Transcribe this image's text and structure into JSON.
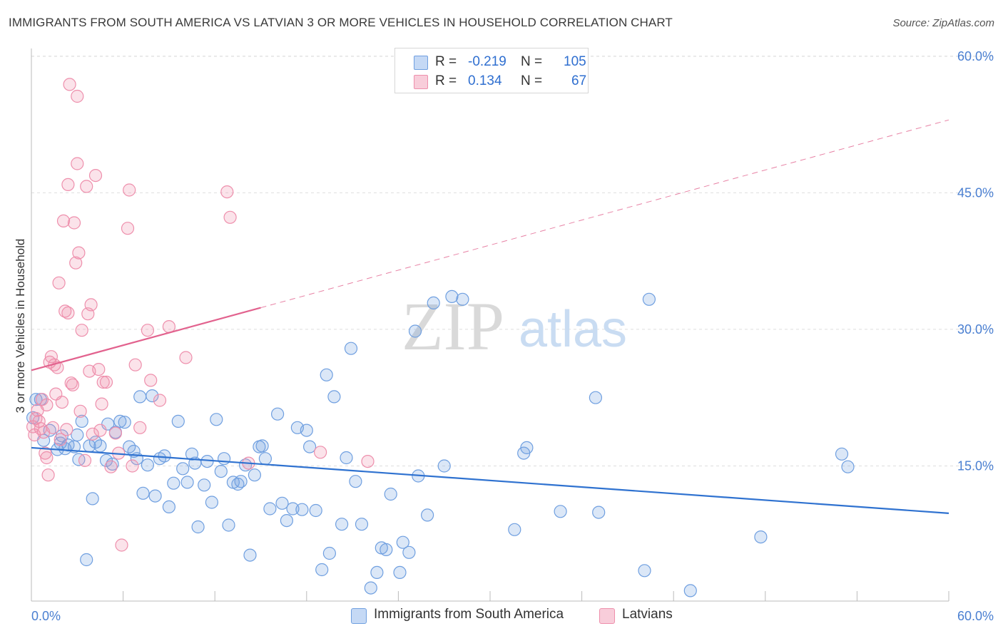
{
  "header": {
    "title": "IMMIGRANTS FROM SOUTH AMERICA VS LATVIAN 3 OR MORE VEHICLES IN HOUSEHOLD CORRELATION CHART",
    "source": "Source: ZipAtlas.com"
  },
  "watermark": {
    "part1": "ZIP",
    "part2": "atlas"
  },
  "legend_top": {
    "rows": [
      {
        "r_label": "R =",
        "r_value": "-0.219",
        "n_label": "N =",
        "n_value": "105",
        "color": "#6f9fe0"
      },
      {
        "r_label": "R =",
        "r_value": "0.134",
        "n_label": "N =",
        "n_value": "67",
        "color": "#ee8fac"
      }
    ]
  },
  "legend_bottom": {
    "items": [
      {
        "label": "Immigrants from South America",
        "color": "#6f9fe0"
      },
      {
        "label": "Latvians",
        "color": "#ee8fac"
      }
    ]
  },
  "chart_data": {
    "type": "scatter",
    "ylabel": "3 or more Vehicles in Household",
    "xlim": [
      0,
      60
    ],
    "ylim": [
      0,
      62
    ],
    "x_tick_labels": [
      "0.0%",
      "60.0%"
    ],
    "y_ticks": [
      15,
      30,
      45,
      60
    ],
    "y_tick_labels": [
      "15.0%",
      "30.0%",
      "45.0%",
      "60.0%"
    ],
    "grid": true,
    "series": [
      {
        "name": "Immigrants from South America",
        "color": "#6f9fe0",
        "line_color": "#2f72d0",
        "trend": {
          "x0": 0,
          "y0": 17.0,
          "x1": 60,
          "y1": 9.8,
          "dashed_from": null
        },
        "points": [
          [
            0.1,
            20.3
          ],
          [
            0.3,
            22.3
          ],
          [
            0.6,
            22.3
          ],
          [
            0.8,
            17.8
          ],
          [
            1.2,
            18.9
          ],
          [
            1.7,
            16.8
          ],
          [
            1.9,
            17.5
          ],
          [
            2.0,
            18.3
          ],
          [
            2.2,
            16.9
          ],
          [
            2.4,
            17.3
          ],
          [
            2.8,
            17.1
          ],
          [
            3.0,
            18.4
          ],
          [
            3.1,
            15.7
          ],
          [
            3.3,
            19.9
          ],
          [
            3.6,
            4.7
          ],
          [
            3.8,
            17.2
          ],
          [
            4.0,
            11.4
          ],
          [
            4.2,
            17.6
          ],
          [
            4.5,
            17.2
          ],
          [
            4.9,
            15.6
          ],
          [
            5.0,
            19.6
          ],
          [
            5.3,
            15.2
          ],
          [
            5.5,
            18.7
          ],
          [
            5.8,
            19.9
          ],
          [
            6.1,
            19.8
          ],
          [
            6.4,
            17.1
          ],
          [
            6.7,
            16.6
          ],
          [
            6.9,
            15.8
          ],
          [
            7.1,
            22.6
          ],
          [
            7.3,
            12.0
          ],
          [
            7.6,
            15.1
          ],
          [
            7.9,
            22.7
          ],
          [
            8.1,
            11.7
          ],
          [
            8.4,
            15.8
          ],
          [
            8.7,
            16.1
          ],
          [
            9.0,
            10.5
          ],
          [
            9.3,
            13.1
          ],
          [
            9.6,
            19.9
          ],
          [
            9.9,
            14.7
          ],
          [
            10.2,
            13.2
          ],
          [
            10.5,
            16.3
          ],
          [
            10.7,
            15.3
          ],
          [
            10.9,
            8.3
          ],
          [
            11.3,
            12.9
          ],
          [
            11.5,
            15.5
          ],
          [
            11.8,
            11.0
          ],
          [
            12.1,
            20.1
          ],
          [
            12.4,
            14.4
          ],
          [
            12.6,
            15.8
          ],
          [
            12.9,
            8.5
          ],
          [
            13.2,
            13.2
          ],
          [
            13.5,
            13.0
          ],
          [
            13.7,
            13.3
          ],
          [
            14.0,
            15.1
          ],
          [
            14.3,
            5.2
          ],
          [
            14.6,
            14.0
          ],
          [
            14.9,
            17.1
          ],
          [
            15.1,
            17.2
          ],
          [
            15.3,
            15.8
          ],
          [
            15.6,
            10.3
          ],
          [
            16.1,
            20.7
          ],
          [
            16.4,
            10.9
          ],
          [
            16.7,
            9.0
          ],
          [
            17.1,
            10.3
          ],
          [
            17.4,
            19.2
          ],
          [
            17.7,
            10.2
          ],
          [
            18.0,
            18.9
          ],
          [
            18.2,
            17.1
          ],
          [
            18.6,
            10.1
          ],
          [
            19.0,
            3.6
          ],
          [
            19.3,
            25.0
          ],
          [
            19.5,
            5.4
          ],
          [
            19.8,
            22.6
          ],
          [
            20.3,
            8.6
          ],
          [
            20.6,
            15.9
          ],
          [
            20.9,
            27.9
          ],
          [
            21.2,
            13.3
          ],
          [
            21.6,
            8.6
          ],
          [
            22.2,
            1.6
          ],
          [
            22.6,
            3.3
          ],
          [
            22.9,
            6.0
          ],
          [
            23.2,
            5.8
          ],
          [
            23.5,
            11.9
          ],
          [
            24.1,
            3.3
          ],
          [
            24.3,
            6.6
          ],
          [
            24.7,
            5.5
          ],
          [
            25.1,
            29.8
          ],
          [
            25.3,
            13.9
          ],
          [
            25.9,
            9.6
          ],
          [
            26.3,
            32.9
          ],
          [
            27.0,
            15.0
          ],
          [
            27.5,
            33.6
          ],
          [
            28.2,
            33.3
          ],
          [
            31.6,
            8.0
          ],
          [
            32.2,
            16.4
          ],
          [
            32.4,
            17.0
          ],
          [
            34.6,
            10.0
          ],
          [
            36.9,
            22.5
          ],
          [
            37.1,
            9.9
          ],
          [
            40.1,
            3.5
          ],
          [
            40.4,
            33.3
          ],
          [
            43.1,
            1.3
          ],
          [
            47.7,
            7.2
          ],
          [
            53.0,
            16.3
          ],
          [
            53.4,
            14.9
          ]
        ]
      },
      {
        "name": "Latvians",
        "color": "#ee8fac",
        "line_color": "#e2628e",
        "trend": {
          "x0": 0,
          "y0": 25.5,
          "x1": 60,
          "y1": 53.0,
          "dashed_from": 15.0
        },
        "points": [
          [
            0.1,
            19.3
          ],
          [
            0.2,
            18.4
          ],
          [
            0.3,
            20.2
          ],
          [
            0.4,
            21.1
          ],
          [
            0.5,
            19.9
          ],
          [
            0.6,
            19.1
          ],
          [
            0.7,
            22.3
          ],
          [
            0.8,
            18.7
          ],
          [
            0.9,
            16.4
          ],
          [
            1.0,
            21.7
          ],
          [
            1.0,
            15.9
          ],
          [
            1.1,
            14.0
          ],
          [
            1.2,
            26.4
          ],
          [
            1.3,
            27.0
          ],
          [
            1.4,
            19.2
          ],
          [
            1.5,
            26.1
          ],
          [
            1.6,
            22.9
          ],
          [
            1.7,
            25.8
          ],
          [
            1.8,
            35.1
          ],
          [
            1.9,
            17.9
          ],
          [
            2.0,
            22.0
          ],
          [
            2.1,
            41.9
          ],
          [
            2.2,
            32.0
          ],
          [
            2.3,
            19.0
          ],
          [
            2.4,
            45.9
          ],
          [
            2.4,
            31.8
          ],
          [
            2.5,
            56.9
          ],
          [
            2.6,
            24.1
          ],
          [
            2.7,
            23.9
          ],
          [
            2.8,
            41.7
          ],
          [
            2.9,
            37.3
          ],
          [
            3.0,
            48.2
          ],
          [
            3.0,
            55.6
          ],
          [
            3.1,
            38.4
          ],
          [
            3.2,
            21.0
          ],
          [
            3.3,
            29.9
          ],
          [
            3.5,
            15.6
          ],
          [
            3.6,
            45.7
          ],
          [
            3.7,
            31.7
          ],
          [
            3.8,
            25.4
          ],
          [
            3.9,
            32.7
          ],
          [
            4.0,
            18.5
          ],
          [
            4.2,
            46.9
          ],
          [
            4.4,
            25.6
          ],
          [
            4.5,
            18.9
          ],
          [
            4.6,
            21.8
          ],
          [
            4.7,
            24.2
          ],
          [
            4.9,
            24.2
          ],
          [
            5.2,
            14.9
          ],
          [
            5.5,
            18.6
          ],
          [
            5.7,
            16.4
          ],
          [
            5.9,
            6.3
          ],
          [
            6.3,
            41.1
          ],
          [
            6.4,
            45.3
          ],
          [
            6.6,
            15.0
          ],
          [
            6.8,
            26.1
          ],
          [
            7.1,
            19.2
          ],
          [
            7.6,
            29.9
          ],
          [
            7.8,
            24.4
          ],
          [
            8.4,
            22.2
          ],
          [
            9.0,
            30.3
          ],
          [
            10.1,
            26.9
          ],
          [
            12.8,
            45.1
          ],
          [
            13.0,
            42.3
          ],
          [
            14.2,
            15.3
          ],
          [
            18.9,
            16.5
          ],
          [
            22.0,
            15.5
          ]
        ]
      }
    ]
  }
}
